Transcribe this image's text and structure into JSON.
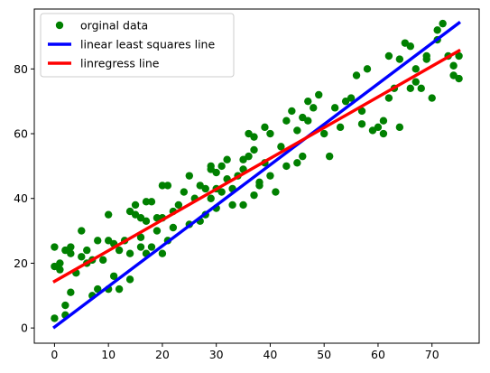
{
  "chart_data": {
    "type": "scatter",
    "xlim": [
      -3.75,
      78.75
    ],
    "ylim": [
      -4.7,
      98.5
    ],
    "xticks": [
      0,
      10,
      20,
      30,
      40,
      50,
      60,
      70
    ],
    "yticks": [
      0,
      20,
      40,
      60,
      80
    ],
    "grid": false,
    "legend_position": "top-left",
    "legend": [
      "orginal data",
      "linear least squares line",
      "linregress line"
    ],
    "series": [
      {
        "name": "orginal data",
        "kind": "scatter",
        "color": "#008000",
        "x": [
          0,
          0,
          0,
          1,
          1,
          2,
          2,
          2,
          3,
          3,
          3,
          4,
          5,
          5,
          6,
          6,
          7,
          7,
          8,
          8,
          9,
          10,
          10,
          10,
          11,
          11,
          12,
          12,
          13,
          14,
          14,
          14,
          15,
          15,
          16,
          16,
          16,
          17,
          17,
          17,
          18,
          18,
          19,
          19,
          20,
          20,
          20,
          21,
          21,
          22,
          22,
          23,
          24,
          25,
          25,
          26,
          27,
          27,
          28,
          28,
          29,
          29,
          29,
          30,
          30,
          30,
          31,
          31,
          32,
          32,
          33,
          33,
          34,
          35,
          35,
          35,
          36,
          36,
          37,
          37,
          37,
          38,
          38,
          39,
          39,
          40,
          40,
          41,
          42,
          43,
          43,
          44,
          45,
          45,
          46,
          46,
          47,
          47,
          48,
          49,
          50,
          51,
          52,
          53,
          54,
          55,
          56,
          57,
          57,
          58,
          59,
          60,
          61,
          61,
          62,
          62,
          63,
          64,
          64,
          65,
          66,
          66,
          67,
          67,
          68,
          69,
          69,
          70,
          71,
          71,
          72,
          73,
          74,
          74,
          75,
          75
        ],
        "y": [
          3,
          19,
          25,
          18,
          20,
          4,
          7,
          24,
          23,
          25,
          11,
          17,
          22,
          30,
          24,
          20,
          10,
          21,
          12,
          27,
          21,
          12,
          35,
          27,
          16,
          26,
          12,
          24,
          27,
          23,
          36,
          15,
          35,
          38,
          28,
          25,
          34,
          23,
          39,
          33,
          25,
          39,
          34,
          30,
          23,
          34,
          44,
          44,
          27,
          36,
          31,
          38,
          42,
          32,
          47,
          40,
          44,
          33,
          35,
          43,
          49,
          40,
          50,
          37,
          43,
          48,
          50,
          42,
          52,
          46,
          38,
          43,
          47,
          52,
          38,
          49,
          60,
          53,
          41,
          59,
          55,
          45,
          44,
          51,
          62,
          47,
          60,
          42,
          56,
          64,
          50,
          67,
          51,
          61,
          65,
          53,
          70,
          64,
          68,
          72,
          60,
          53,
          68,
          62,
          70,
          71,
          78,
          63,
          67,
          80,
          61,
          62,
          60,
          64,
          71,
          84,
          74,
          62,
          83,
          88,
          87,
          74,
          76,
          80,
          74,
          84,
          83,
          71,
          89,
          92,
          94,
          84,
          78,
          81,
          77,
          84
        ]
      },
      {
        "name": "linear least squares line",
        "kind": "line",
        "color": "#0000ff",
        "x": [
          0,
          75
        ],
        "y": [
          0.3,
          94.2
        ]
      },
      {
        "name": "linregress line",
        "kind": "line",
        "color": "#ff0000",
        "x": [
          0,
          75
        ],
        "y": [
          14.4,
          85.6
        ]
      }
    ]
  }
}
